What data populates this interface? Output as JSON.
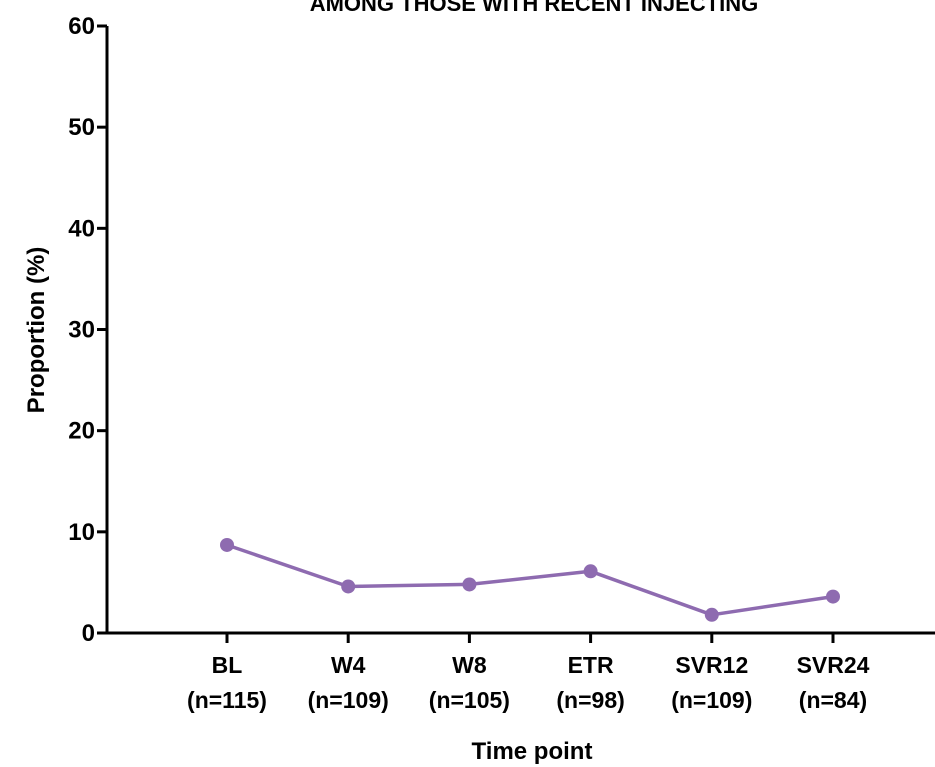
{
  "chart_data": {
    "type": "line",
    "title": "AMONG THOSE WITH RECENT INJECTING",
    "xlabel": "Time point",
    "ylabel": "Proportion (%)",
    "ylim": [
      0,
      60
    ],
    "yticks": [
      "0",
      "10",
      "20",
      "30",
      "40",
      "50",
      "60"
    ],
    "categories": [
      "BL",
      "W4",
      "W8",
      "ETR",
      "SVR12",
      "SVR24"
    ],
    "category_sublabels": [
      "(n=115)",
      "(n=109)",
      "(n=105)",
      "(n=98)",
      "(n=109)",
      "(n=84)"
    ],
    "series": [
      {
        "values": [
          8.7,
          4.6,
          4.8,
          6.1,
          1.8,
          3.6
        ],
        "color": "#8e6bb0"
      }
    ],
    "grid": false,
    "legend": "none"
  }
}
